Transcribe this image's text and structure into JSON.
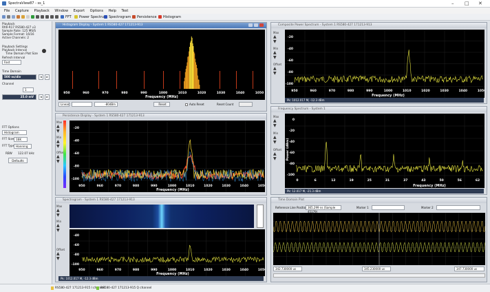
{
  "app": {
    "title": "SpectraView87 - ss_1"
  },
  "menu": [
    "File",
    "Capture",
    "Playback",
    "Window",
    "Export",
    "Options",
    "Help",
    "Test"
  ],
  "toolbar": {
    "fft": "FFT",
    "power_spectrum": "Power Spectrum",
    "spectrogram": "Spectrogram",
    "persistence": "Persistence",
    "histogram": "Histogram"
  },
  "sidebar": {
    "playback_header": "Playback",
    "file_info": [
      "Rfdl-R17 RS580-427 v3",
      "Sample Rate: 125 MS/S",
      "Sample Format: 16/16",
      "Active Channels: 2"
    ],
    "playback_settings": "Playback Settings",
    "playback_interval": "Playback Interval",
    "time_domain_plot_size": "Time Domain Plot Size",
    "refresh_interval": "Refresh Interval",
    "refresh_value": "Fast",
    "time_domain_header": "Time Domain",
    "time_domain_value": "500 ns/div",
    "channel_label": "Channel",
    "channel_value": "1",
    "volts_value": "25.0 mV",
    "fft_options": "FFT Options",
    "fft_mode": "Histogram",
    "fft_size_label": "FFT Size",
    "fft_size": "16K",
    "fft_type_label": "FFT Type",
    "fft_type": "Hanning",
    "rbw_label": "RBW",
    "rbw_value": "122.07 kHz",
    "defaults_button": "Defaults"
  },
  "windows": {
    "histogram": {
      "title": "Histogram Display - System 1 RS580-427 171213-913",
      "xlabel": "Frequency (MHz)",
      "ticks": [
        "950",
        "960",
        "970",
        "980",
        "990",
        "1000",
        "1010",
        "1020",
        "1030",
        "1040",
        "1050"
      ],
      "mode": "Linear",
      "level": "-80dBm",
      "reset": "Reset",
      "auto_reset": "Auto Reset",
      "reset_count": "Reset Count"
    },
    "composite": {
      "title": "Composite Power Spectrum - System 1 RS580-427 171213-913",
      "xlabel": "Frequency (MHz)",
      "yticks": [
        "-20",
        "-40",
        "-60",
        "-80",
        "-100"
      ],
      "ticks": [
        "950",
        "960",
        "970",
        "980",
        "990",
        "1000",
        "1010",
        "1020",
        "1030",
        "1040",
        "1050"
      ],
      "status": "Pk: 1012.017 M, -12.3 dBm",
      "side": [
        "Max",
        "Min",
        "Offset"
      ]
    },
    "persistence": {
      "title": "Persistence Display - System 1 RS580-427 171213-913",
      "xlabel": "Frequency (MHz)",
      "yticks": [
        "-20",
        "-40",
        "-60",
        "-80",
        "-100"
      ],
      "ticks": [
        "950",
        "960",
        "970",
        "980",
        "990",
        "1000",
        "1010",
        "1020",
        "1030",
        "1040",
        "1050"
      ],
      "side": [
        "Max",
        "Min",
        "Offset"
      ]
    },
    "frequency": {
      "title": "Frequency Spectrum - System 1",
      "ylabel": "Power (dBm)",
      "xlabel": "Frequency (MHz)",
      "yticks": [
        "0",
        "-20",
        "-40",
        "-60",
        "-80",
        "-100"
      ],
      "ticks": [
        "0",
        "6",
        "12",
        "19",
        "25",
        "31",
        "37",
        "43",
        "50",
        "56",
        "62"
      ],
      "status": "Pk: 12.017 M, -21.3 dBm",
      "side": [
        "Max",
        "Min",
        "Offset"
      ]
    },
    "spectrogram": {
      "title": "Spectrogram - System 1 RS580-427 171213-913",
      "xlabel": "Frequency (MHz)",
      "yticks": [
        "-40",
        "-60",
        "-80",
        "-100"
      ],
      "ticks": [
        "950",
        "960",
        "970",
        "980",
        "990",
        "1000",
        "1010",
        "1020",
        "1030",
        "1040",
        "1050"
      ],
      "status": "Pk: 1012.017 M, -12.3 dBm",
      "side": [
        "Max",
        "Min",
        "Offset"
      ]
    },
    "time": {
      "title": "Time Domain Plot",
      "ref_label": "Reference Line Position",
      "ref_value": "365.299 ns (Sample 45179)",
      "marker1": "Marker 1",
      "marker2": "Marker 2",
      "t_start": "342.730000 us",
      "t_mid": "345.230000 us",
      "t_end": "347.730000 us"
    }
  },
  "bottombar": {
    "ch1": "RS580-427 171213-915 I channel",
    "ch2": "RS580-427 171213-915 Q channel"
  },
  "colors": {
    "trace": "#e8e640",
    "peak": "#f0d000",
    "titlebar_active": "#4a78b8",
    "spectrogram_peak": "#36c2ff"
  }
}
